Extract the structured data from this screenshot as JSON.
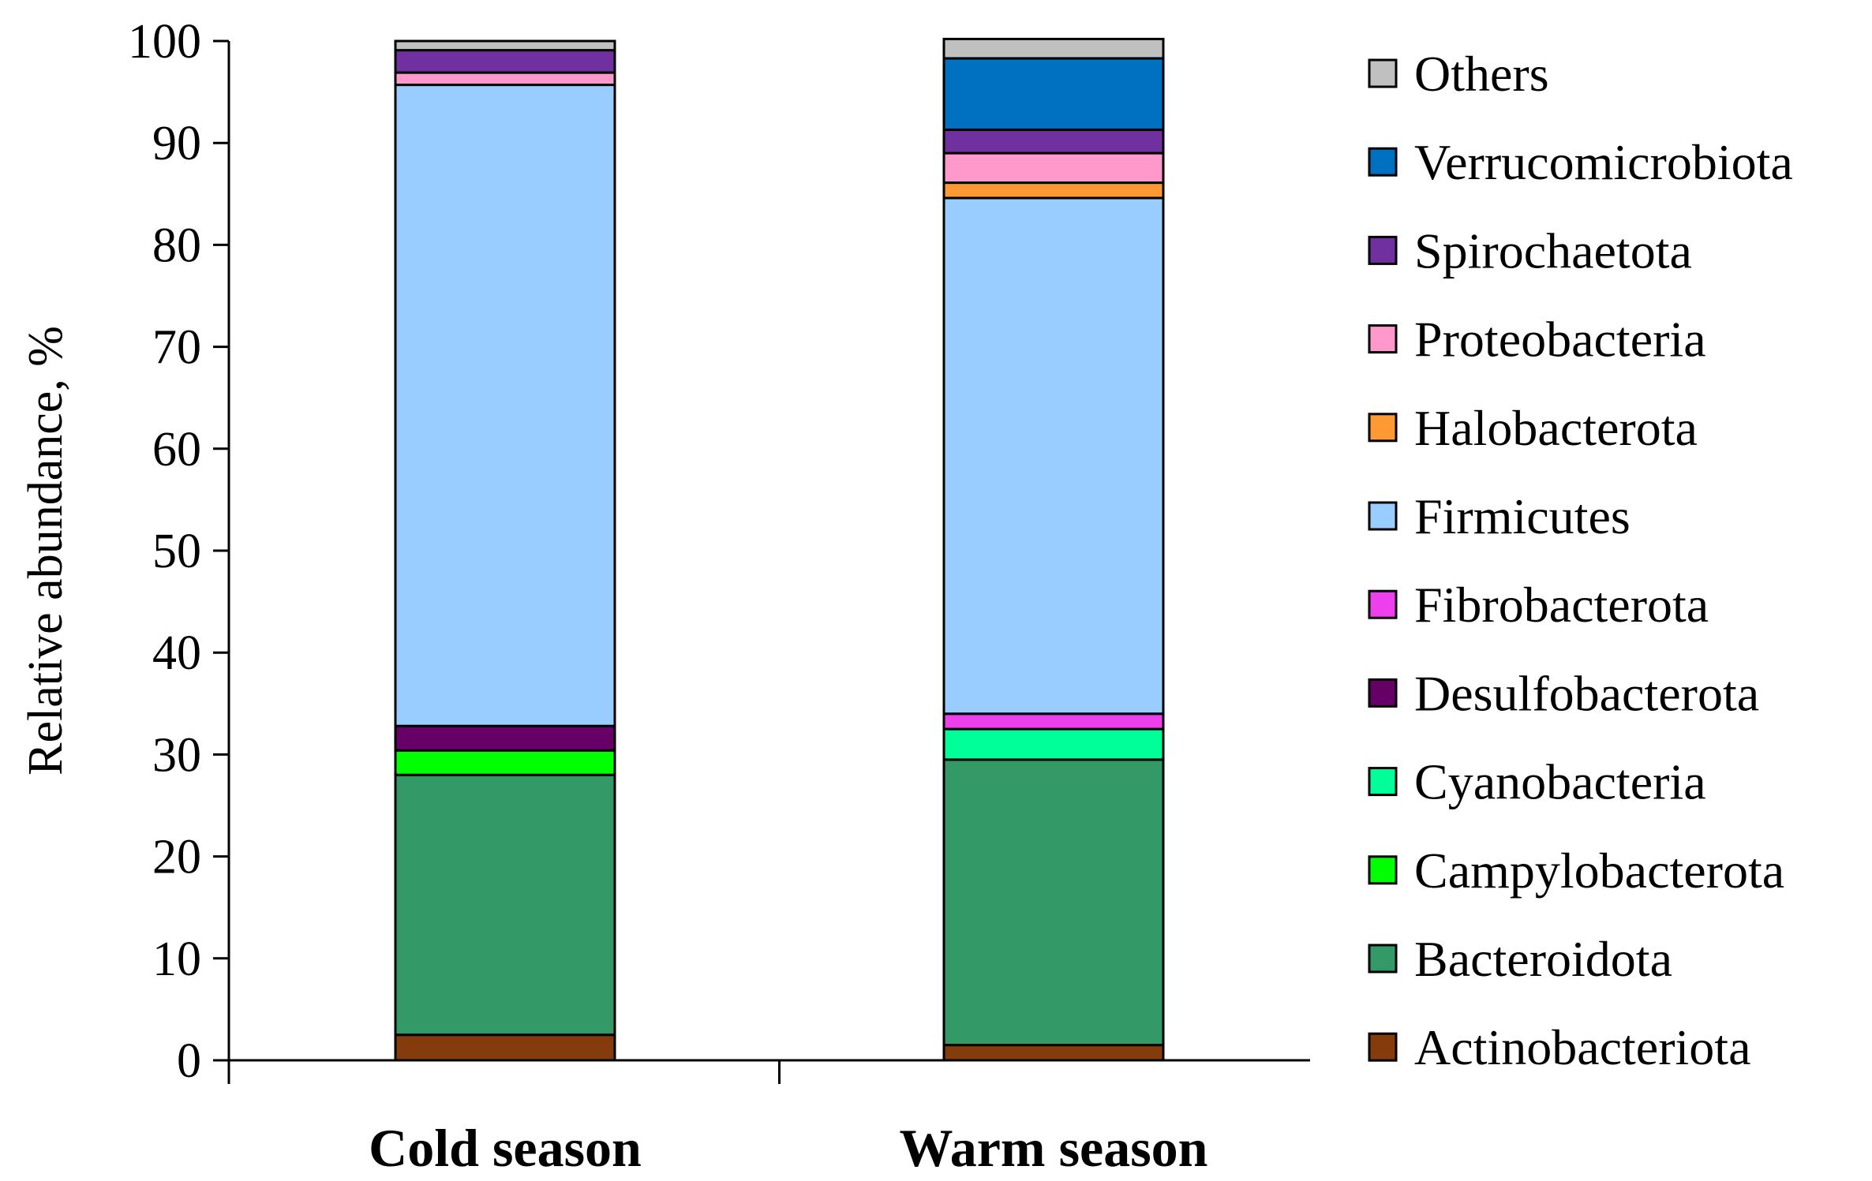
{
  "chart_data": {
    "type": "bar",
    "stacked": true,
    "title": "",
    "xlabel": "",
    "ylabel": "Relative abundance, %",
    "ylim": [
      0,
      100
    ],
    "yticks": [
      0,
      10,
      20,
      30,
      40,
      50,
      60,
      70,
      80,
      90,
      100
    ],
    "categories": [
      "Cold season",
      "Warm season"
    ],
    "series": [
      {
        "name": "Actinobacteriota",
        "color": "#843C0C",
        "values": [
          2.5,
          1.5
        ]
      },
      {
        "name": "Bacteroidota",
        "color": "#339966",
        "values": [
          25.5,
          28.0
        ]
      },
      {
        "name": "Campylobacterota",
        "color": "#00FF00",
        "values": [
          2.4,
          0.0
        ]
      },
      {
        "name": "Cyanobacteria",
        "color": "#00FF99",
        "values": [
          0.0,
          3.0
        ]
      },
      {
        "name": "Desulfobacterota",
        "color": "#660066",
        "values": [
          2.4,
          0.0
        ]
      },
      {
        "name": "Fibrobacterota",
        "color": "#EE3FEE",
        "values": [
          0.0,
          1.5
        ]
      },
      {
        "name": "Firmicutes",
        "color": "#99CCFF",
        "values": [
          62.9,
          50.6
        ]
      },
      {
        "name": "Halobacterota",
        "color": "#FF9933",
        "values": [
          0.0,
          1.5
        ]
      },
      {
        "name": "Proteobacteria",
        "color": "#FF99CC",
        "values": [
          1.2,
          2.9
        ]
      },
      {
        "name": "Spirochaetota",
        "color": "#7030A0",
        "values": [
          2.2,
          2.3
        ]
      },
      {
        "name": "Verrucomicrobiota",
        "color": "#0070C0",
        "values": [
          0.0,
          7.0
        ]
      },
      {
        "name": "Others",
        "color": "#C0C0C0",
        "values": [
          0.9,
          1.9
        ]
      }
    ],
    "legend_position": "right"
  }
}
